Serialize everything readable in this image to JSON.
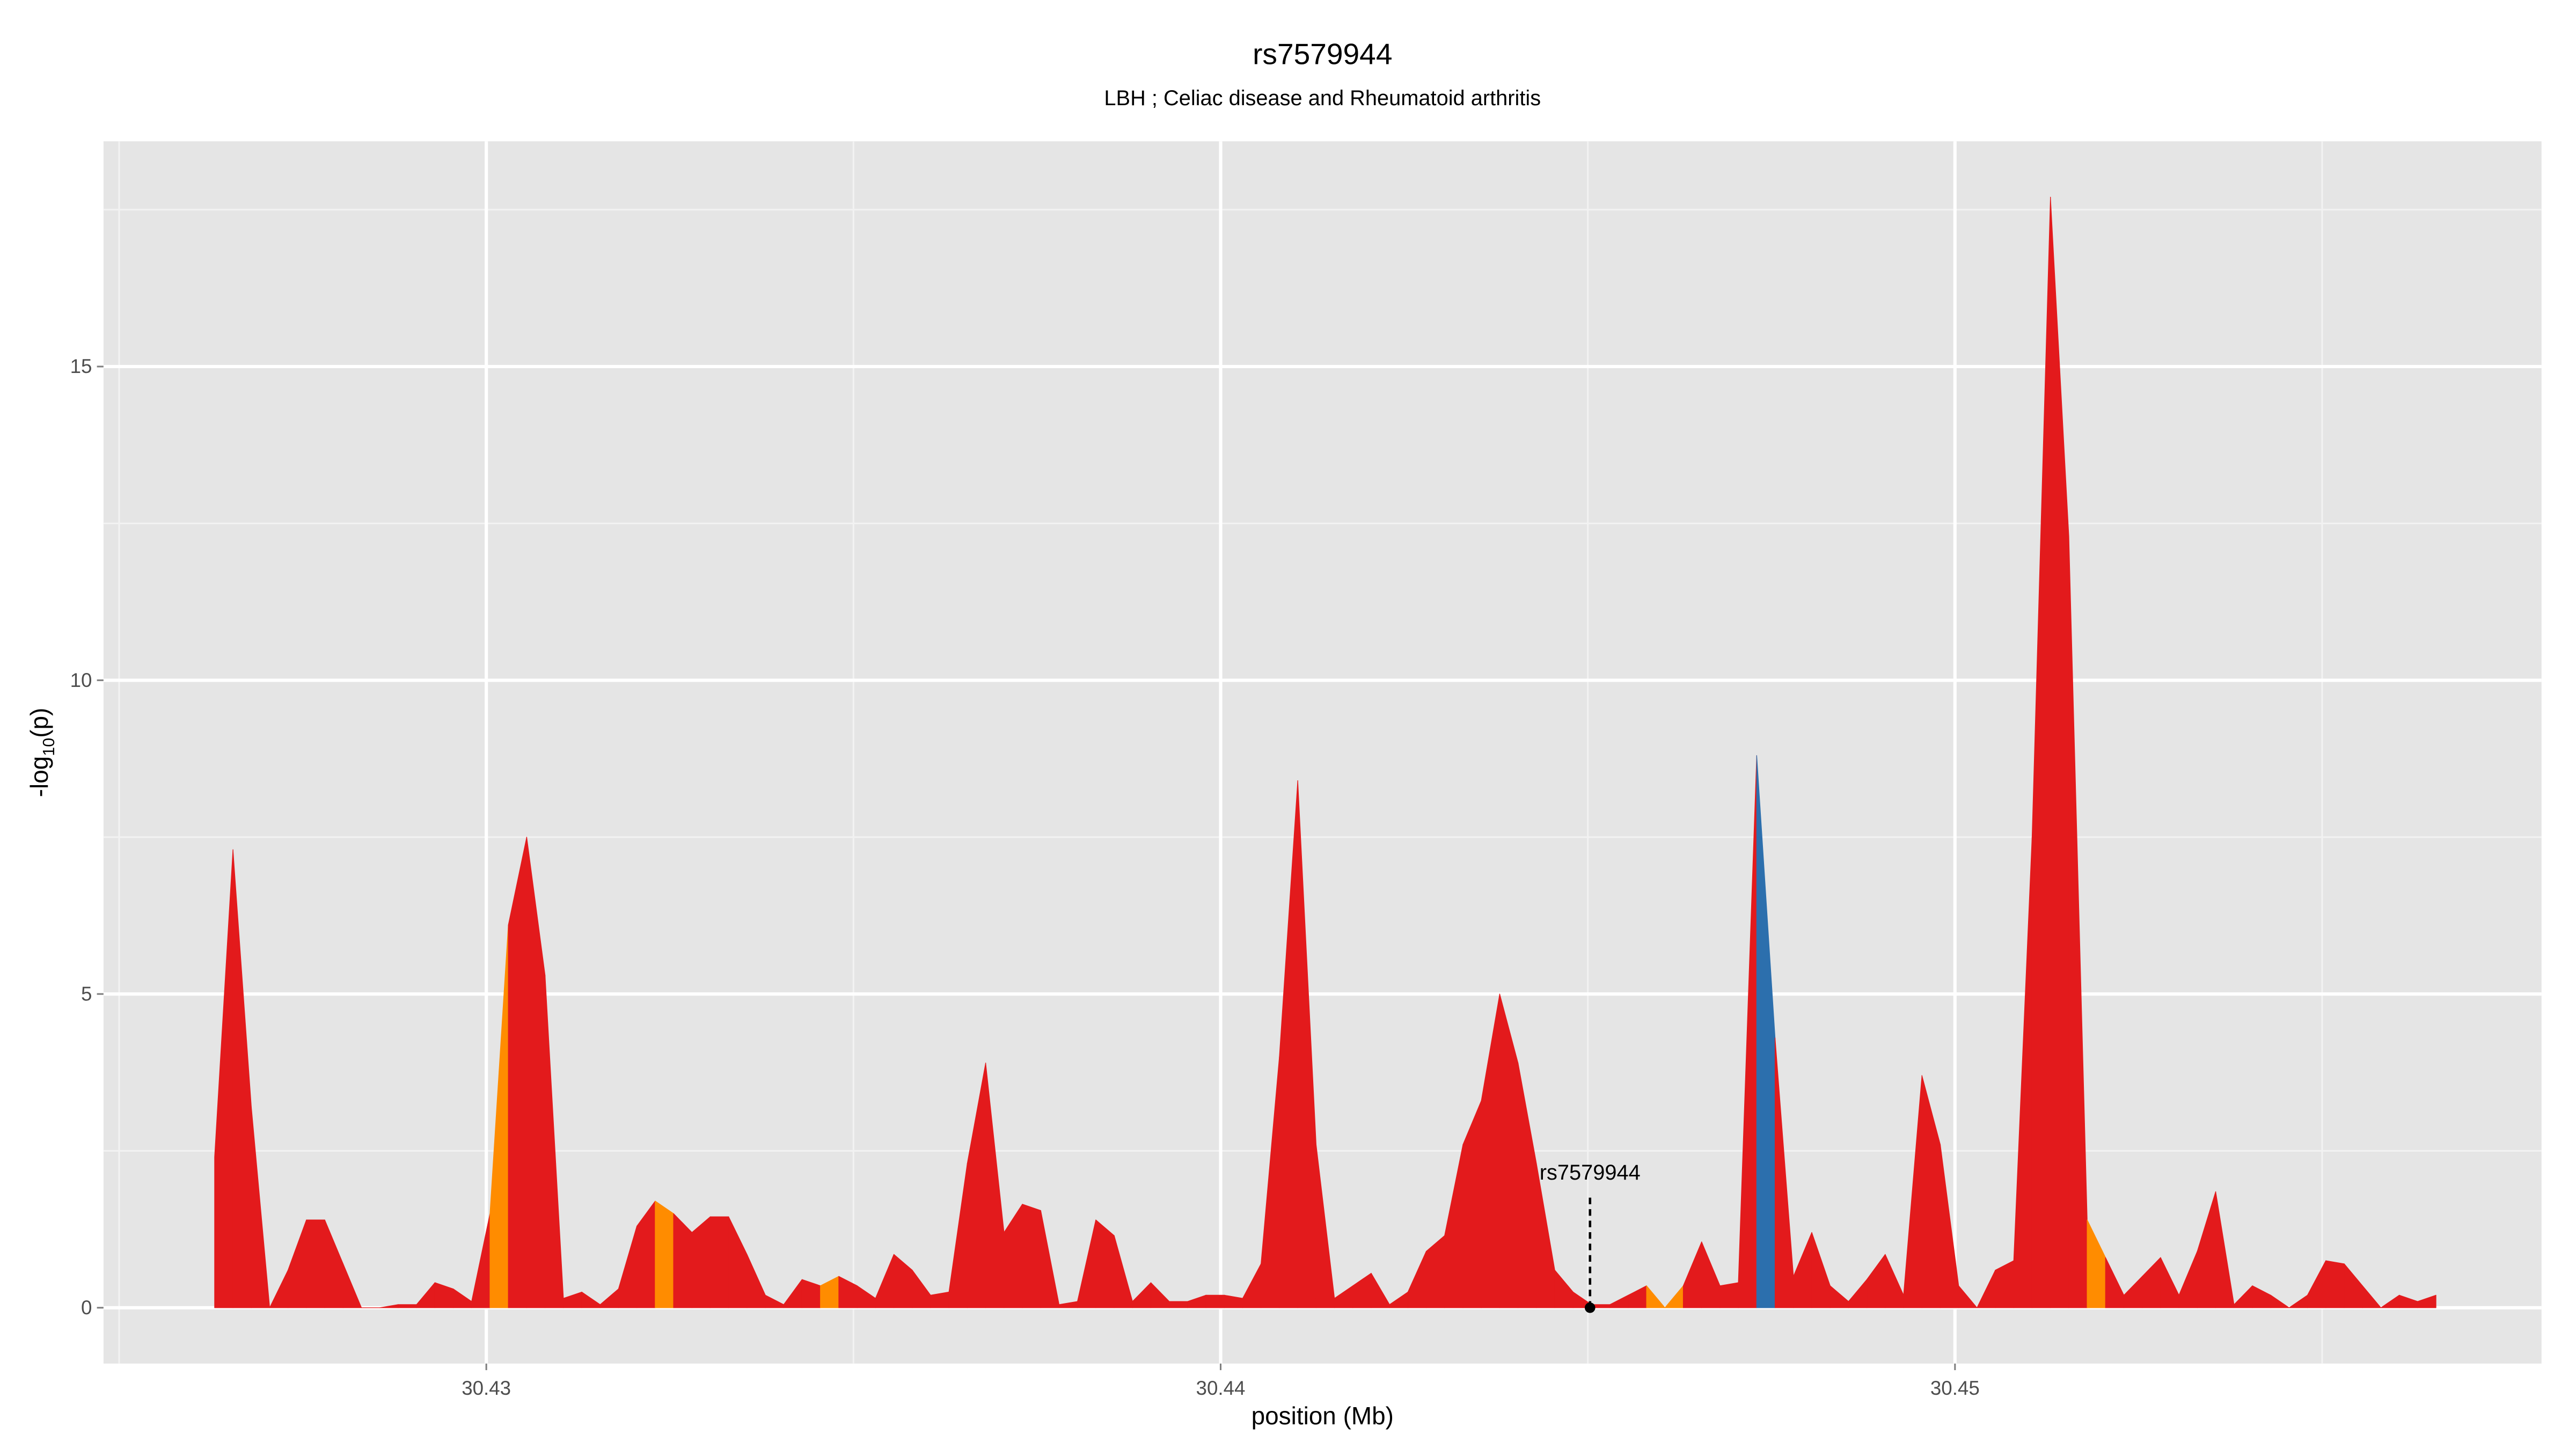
{
  "chart_data": {
    "type": "area",
    "title": "rs7579944",
    "subtitle": "LBH ; Celiac disease and Rheumatoid arthritis",
    "xlabel": "position (Mb)",
    "ylabel": {
      "main": "-log",
      "sub": "10",
      "suffix": "(p)"
    },
    "xlim": [
      30.424787,
      30.457987
    ],
    "ylim": [
      -0.89,
      18.59
    ],
    "xticks": [
      30.43,
      30.44,
      30.45
    ],
    "yticks": [
      0,
      5,
      10,
      15
    ],
    "x_minor_breaks": [
      30.425,
      30.435,
      30.445,
      30.455
    ],
    "y_minor_breaks": [
      2.5,
      7.5,
      12.5,
      17.5
    ],
    "grid": true,
    "x": [
      30.4263,
      30.42655,
      30.4268,
      30.42705,
      30.4273,
      30.42755,
      30.4278,
      30.42805,
      30.4283,
      30.42855,
      30.4288,
      30.42905,
      30.4293,
      30.42955,
      30.4298,
      30.43005,
      30.4303,
      30.43055,
      30.4308,
      30.43105,
      30.4313,
      30.43155,
      30.4318,
      30.43205,
      30.4323,
      30.43255,
      30.4328,
      30.43305,
      30.4333,
      30.43355,
      30.4338,
      30.43405,
      30.4343,
      30.43455,
      30.4348,
      30.43505,
      30.4353,
      30.43555,
      30.4358,
      30.43605,
      30.4363,
      30.43655,
      30.4368,
      30.43705,
      30.4373,
      30.43755,
      30.4378,
      30.43805,
      30.4383,
      30.43855,
      30.4388,
      30.43905,
      30.4393,
      30.43955,
      30.4398,
      30.44005,
      30.4403,
      30.44055,
      30.4408,
      30.44105,
      30.4413,
      30.44155,
      30.4418,
      30.44205,
      30.4423,
      30.44255,
      30.4428,
      30.44305,
      30.4433,
      30.44355,
      30.4438,
      30.44405,
      30.4443,
      30.44455,
      30.4448,
      30.44505,
      30.4453,
      30.44555,
      30.4458,
      30.44605,
      30.4463,
      30.44655,
      30.4468,
      30.44705,
      30.4473,
      30.44755,
      30.4478,
      30.44805,
      30.4483,
      30.44855,
      30.4488,
      30.44905,
      30.4493,
      30.44955,
      30.4498,
      30.45005,
      30.4503,
      30.45055,
      30.4508,
      30.45105,
      30.4513,
      30.45155,
      30.4518,
      30.45205,
      30.4523,
      30.45255,
      30.4528,
      30.45305,
      30.4533,
      30.45355,
      30.4538,
      30.45405,
      30.4543,
      30.45455,
      30.4548,
      30.45505,
      30.4553,
      30.45555,
      30.4558,
      30.45605,
      30.4563,
      30.45655
    ],
    "values": [
      2.4,
      7.3,
      3.2,
      0,
      0.6,
      1.4,
      1.4,
      0.7,
      0,
      0,
      0.05,
      0.05,
      0.4,
      0.3,
      0.1,
      1.5,
      6.1,
      7.5,
      5.3,
      0.15,
      0.25,
      0.05,
      0.3,
      1.3,
      1.7,
      1.5,
      1.2,
      1.45,
      1.45,
      0.85,
      0.2,
      0.05,
      0.45,
      0.35,
      0.5,
      0.35,
      0.15,
      0.85,
      0.6,
      0.2,
      0.25,
      2.3,
      3.9,
      1.2,
      1.65,
      1.55,
      0.05,
      0.1,
      1.4,
      1.15,
      0.1,
      0.4,
      0.1,
      0.1,
      0.2,
      0.2,
      0.15,
      0.7,
      4.0,
      8.4,
      2.6,
      0.15,
      0.35,
      0.55,
      0.05,
      0.25,
      0.9,
      1.15,
      2.6,
      3.3,
      5.0,
      3.9,
      2.3,
      0.6,
      0.25,
      0.05,
      0.05,
      0.2,
      0.35,
      0,
      0.35,
      1.05,
      0.35,
      0.4,
      8.8,
      4.3,
      0.5,
      1.2,
      0.35,
      0.1,
      0.45,
      0.85,
      0.2,
      3.7,
      2.6,
      0.35,
      0,
      0.6,
      0.75,
      7.5,
      17.7,
      12.3,
      1.4,
      0.8,
      0.2,
      0.5,
      0.8,
      0.2,
      0.9,
      1.85,
      0.05,
      0.35,
      0.2,
      0,
      0.2,
      0.75,
      0.7,
      0.35,
      0,
      0.2,
      0.1,
      0.2
    ],
    "segment_colors": [
      "#e31a1c",
      "#e31a1c",
      "#e31a1c",
      "#e31a1c",
      "#e31a1c",
      "#e31a1c",
      "#e31a1c",
      "#e31a1c",
      "#e31a1c",
      "#e31a1c",
      "#e31a1c",
      "#e31a1c",
      "#e31a1c",
      "#e31a1c",
      "#e31a1c",
      "#ff8c00",
      "#e31a1c",
      "#e31a1c",
      "#e31a1c",
      "#e31a1c",
      "#e31a1c",
      "#e31a1c",
      "#e31a1c",
      "#e31a1c",
      "#ff8c00",
      "#e31a1c",
      "#e31a1c",
      "#e31a1c",
      "#e31a1c",
      "#e31a1c",
      "#e31a1c",
      "#e31a1c",
      "#e31a1c",
      "#ff8c00",
      "#e31a1c",
      "#e31a1c",
      "#e31a1c",
      "#e31a1c",
      "#e31a1c",
      "#e31a1c",
      "#e31a1c",
      "#e31a1c",
      "#e31a1c",
      "#e31a1c",
      "#e31a1c",
      "#e31a1c",
      "#e31a1c",
      "#e31a1c",
      "#e31a1c",
      "#e31a1c",
      "#e31a1c",
      "#e31a1c",
      "#e31a1c",
      "#e31a1c",
      "#e31a1c",
      "#e31a1c",
      "#e31a1c",
      "#e31a1c",
      "#e31a1c",
      "#e31a1c",
      "#e31a1c",
      "#e31a1c",
      "#e31a1c",
      "#e31a1c",
      "#e31a1c",
      "#e31a1c",
      "#e31a1c",
      "#e31a1c",
      "#e31a1c",
      "#e31a1c",
      "#e31a1c",
      "#e31a1c",
      "#e31a1c",
      "#e31a1c",
      "#e31a1c",
      "#e31a1c",
      "#e31a1c",
      "#e31a1c",
      "#ff8c00",
      "#ff8c00",
      "#e31a1c",
      "#e31a1c",
      "#e31a1c",
      "#e31a1c",
      "#2c6fad",
      "#e31a1c",
      "#e31a1c",
      "#e31a1c",
      "#e31a1c",
      "#e31a1c",
      "#e31a1c",
      "#e31a1c",
      "#e31a1c",
      "#e31a1c",
      "#e31a1c",
      "#e31a1c",
      "#e31a1c",
      "#e31a1c",
      "#e31a1c",
      "#e31a1c",
      "#e31a1c",
      "#e31a1c",
      "#ff8c00",
      "#e31a1c",
      "#e31a1c",
      "#e31a1c",
      "#e31a1c",
      "#e31a1c",
      "#e31a1c",
      "#e31a1c",
      "#e31a1c",
      "#e31a1c",
      "#e31a1c",
      "#e31a1c",
      "#e31a1c",
      "#e31a1c",
      "#e31a1c",
      "#e31a1c",
      "#e31a1c",
      "#e31a1c",
      "#e31a1c"
    ],
    "annotation": {
      "text": "rs7579944",
      "x": 30.44503,
      "y": 0
    }
  }
}
